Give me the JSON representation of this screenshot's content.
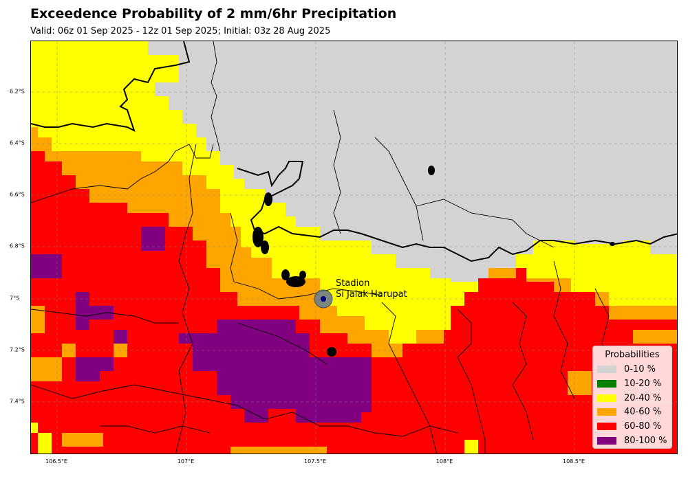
{
  "title": "Exceedence Probability of 2 mm/6hr Precipitation",
  "subtitle": "Valid: 06z 01 Sep 2025 - 12z 01 Sep 2025; Initial: 03z 28 Aug 2025",
  "axes": {
    "x_ticks": [
      "106.5°E",
      "107°E",
      "107.5°E",
      "108°E",
      "108.5°E"
    ],
    "y_ticks": [
      "6.2°S",
      "6.4°S",
      "6.6°S",
      "6.8°S",
      "7°S",
      "7.2°S",
      "7.4°S"
    ],
    "lon_range": [
      106.4,
      108.9
    ],
    "lat_range": [
      -7.6,
      -6.0
    ],
    "grid": true
  },
  "legend": {
    "title": "Probabilities",
    "placement": "lower-right",
    "items": [
      {
        "label": "0-10 %",
        "color": "#d3d3d3"
      },
      {
        "label": "10-20 %",
        "color": "#008000"
      },
      {
        "label": "20-40 %",
        "color": "#ffff00"
      },
      {
        "label": "40-60 %",
        "color": "#ffa500"
      },
      {
        "label": "60-80 %",
        "color": "#ff0000"
      },
      {
        "label": "80-100 %",
        "color": "#800080"
      }
    ]
  },
  "station": {
    "name_line1": "Stadion",
    "name_line2": "Si Jalak Harupat",
    "lon": 107.53,
    "lat": -7.0
  }
}
